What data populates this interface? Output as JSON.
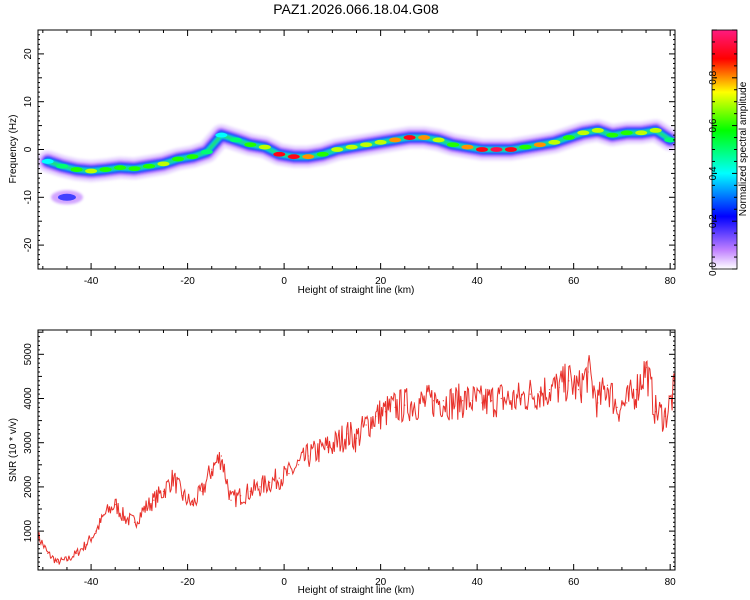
{
  "figure": {
    "title": "PAZ1.2026.066.18.04.G08"
  },
  "chart_data": [
    {
      "type": "heatmap",
      "name": "spectrogram",
      "xlabel": "Height of straight line (km)",
      "ylabel": "Frequency (Hz)",
      "xlim": [
        -51,
        81
      ],
      "ylim": [
        -25,
        25
      ],
      "xticks": [
        -40,
        -20,
        0,
        20,
        40,
        60,
        80
      ],
      "yticks": [
        -20,
        -10,
        0,
        10,
        20
      ],
      "ridge": {
        "x": [
          -49,
          -46,
          -43,
          -40,
          -37,
          -34,
          -31,
          -28,
          -25,
          -22,
          -19,
          -16,
          -13,
          -10,
          -7,
          -4,
          -1,
          2,
          5,
          8,
          11,
          14,
          17,
          20,
          23,
          26,
          29,
          32,
          35,
          38,
          41,
          44,
          47,
          50,
          53,
          56,
          59,
          62,
          65,
          68,
          71,
          74,
          77,
          80
        ],
        "freq": [
          -2.5,
          -3.5,
          -4.2,
          -4.5,
          -4.2,
          -3.8,
          -4.0,
          -3.5,
          -3.0,
          -2.0,
          -1.5,
          -0.5,
          3.0,
          2.0,
          1.0,
          0.5,
          -1.0,
          -1.5,
          -1.5,
          -1.0,
          0.0,
          0.5,
          1.0,
          1.5,
          2.0,
          2.5,
          2.5,
          2.0,
          1.0,
          0.5,
          0.0,
          0.0,
          0.0,
          0.5,
          1.0,
          1.5,
          2.5,
          3.5,
          4.0,
          3.0,
          3.5,
          3.5,
          4.0,
          2.0
        ],
        "amplitude": [
          0.4,
          0.5,
          0.6,
          0.7,
          0.6,
          0.6,
          0.6,
          0.6,
          0.7,
          0.6,
          0.6,
          0.5,
          0.4,
          0.5,
          0.6,
          0.7,
          0.9,
          0.9,
          0.8,
          0.6,
          0.7,
          0.7,
          0.7,
          0.7,
          0.8,
          0.9,
          0.8,
          0.7,
          0.6,
          0.8,
          0.9,
          0.95,
          0.9,
          0.6,
          0.8,
          0.7,
          0.6,
          0.7,
          0.7,
          0.6,
          0.6,
          0.7,
          0.7,
          0.5
        ]
      },
      "secondary_blob": {
        "x": -45,
        "freq": -10,
        "amplitude": 0.35
      }
    },
    {
      "type": "colorbar",
      "name": "colorbar",
      "label": "Normalized spectral amplitude",
      "range": [
        0,
        1
      ],
      "ticks": [
        "0.0",
        "0.2",
        "0.4",
        "0.6",
        "0.8"
      ],
      "tick_values": [
        0.0,
        0.2,
        0.4,
        0.6,
        0.8
      ],
      "colors": [
        "#ffffff",
        "#c080ff",
        "#0000ff",
        "#00ffff",
        "#00ff00",
        "#ffff00",
        "#ff0000",
        "#ff1a80"
      ]
    },
    {
      "type": "line",
      "name": "snr",
      "xlabel": "Height of straight line (km)",
      "ylabel": "SNR (10 * v/v)",
      "xlim": [
        -51,
        81
      ],
      "ylim": [
        120,
        5550
      ],
      "xticks": [
        -40,
        -20,
        0,
        20,
        40,
        60,
        80
      ],
      "yticks": [
        1000,
        2000,
        3000,
        4000,
        5000
      ],
      "color": "#e8302a",
      "series": {
        "x": [
          -51,
          -49,
          -47,
          -45,
          -43,
          -41,
          -39,
          -37,
          -35,
          -33,
          -31,
          -29,
          -27,
          -25,
          -23,
          -21,
          -19,
          -17,
          -15,
          -13,
          -11,
          -9,
          -7,
          -5,
          -3,
          -1,
          1,
          3,
          5,
          7,
          9,
          11,
          13,
          15,
          17,
          19,
          21,
          23,
          25,
          27,
          29,
          31,
          33,
          35,
          37,
          39,
          41,
          43,
          45,
          47,
          49,
          51,
          53,
          55,
          57,
          59,
          61,
          63,
          65,
          67,
          69,
          71,
          73,
          75,
          77,
          79,
          81
        ],
        "values": [
          900,
          500,
          300,
          350,
          500,
          700,
          1000,
          1400,
          1600,
          1300,
          1200,
          1500,
          1700,
          1900,
          2200,
          1800,
          1600,
          1900,
          2400,
          2700,
          1700,
          1800,
          1900,
          2000,
          2100,
          2200,
          2300,
          2500,
          2700,
          2800,
          2900,
          3000,
          3200,
          3100,
          3400,
          3600,
          3700,
          3800,
          3850,
          3900,
          3900,
          3950,
          3950,
          3900,
          3950,
          3950,
          3900,
          3950,
          4000,
          3950,
          4000,
          4100,
          4150,
          4200,
          4250,
          4400,
          4200,
          4600,
          3900,
          4300,
          3800,
          3900,
          4200,
          4700,
          3700,
          3600,
          4200
        ]
      }
    }
  ]
}
